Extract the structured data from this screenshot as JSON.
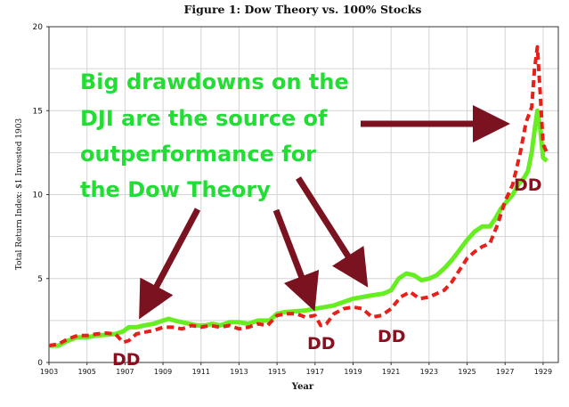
{
  "chart_data": {
    "type": "line",
    "title": "Figure 1: Dow Theory vs. 100% Stocks",
    "xlabel": "Year",
    "ylabel": "Total Return Index: $1 Invested 1903",
    "xlim": [
      1903,
      1929.8
    ],
    "ylim": [
      0,
      20
    ],
    "x_ticks": [
      "1903",
      "1905",
      "1907",
      "1909",
      "1911",
      "1913",
      "1915",
      "1917",
      "1919",
      "1921",
      "1923",
      "1925",
      "1927",
      "1929"
    ],
    "y_ticks": [
      "0",
      "5",
      "10",
      "15",
      "20"
    ],
    "grid": true,
    "series": [
      {
        "color": "#66ee22",
        "style": "solid",
        "x": [
          1903.0,
          1903.5,
          1904.0,
          1904.5,
          1905.0,
          1905.5,
          1906.0,
          1906.5,
          1906.9,
          1907.2,
          1907.6,
          1908.0,
          1908.5,
          1909.0,
          1909.3,
          1909.6,
          1910.0,
          1910.4,
          1910.8,
          1911.2,
          1911.6,
          1912.0,
          1912.5,
          1913.0,
          1913.5,
          1914.0,
          1914.6,
          1915.0,
          1915.4,
          1916.0,
          1916.5,
          1917.0,
          1917.5,
          1918.0,
          1918.5,
          1919.0,
          1919.5,
          1920.0,
          1920.6,
          1921.0,
          1921.4,
          1921.8,
          1922.2,
          1922.6,
          1923.0,
          1923.4,
          1923.8,
          1924.2,
          1924.6,
          1925.0,
          1925.4,
          1925.8,
          1926.2,
          1926.5,
          1926.8,
          1927.1,
          1927.4,
          1927.7,
          1928.0,
          1928.2,
          1928.4,
          1928.55,
          1928.7,
          1928.85,
          1929.0,
          1929.2
        ],
        "y": [
          1.0,
          1.0,
          1.3,
          1.5,
          1.5,
          1.6,
          1.65,
          1.7,
          1.85,
          2.1,
          2.1,
          2.2,
          2.3,
          2.5,
          2.6,
          2.5,
          2.4,
          2.3,
          2.2,
          2.2,
          2.3,
          2.2,
          2.4,
          2.4,
          2.3,
          2.5,
          2.5,
          2.9,
          3.0,
          3.05,
          3.1,
          3.2,
          3.3,
          3.4,
          3.6,
          3.8,
          3.9,
          4.0,
          4.1,
          4.3,
          5.0,
          5.3,
          5.2,
          4.9,
          5.0,
          5.2,
          5.6,
          6.1,
          6.7,
          7.3,
          7.8,
          8.1,
          8.1,
          8.6,
          9.2,
          9.6,
          10.0,
          10.6,
          11.0,
          11.4,
          12.5,
          13.8,
          15.0,
          13.9,
          12.2,
          12.0
        ]
      },
      {
        "color": "#e8201a",
        "style": "dashed",
        "x": [
          1903.0,
          1903.5,
          1904.0,
          1904.5,
          1905.0,
          1905.5,
          1906.0,
          1906.5,
          1906.9,
          1907.2,
          1907.6,
          1908.0,
          1908.5,
          1909.0,
          1909.5,
          1910.0,
          1910.5,
          1911.0,
          1911.5,
          1912.0,
          1912.5,
          1913.0,
          1913.5,
          1914.0,
          1914.5,
          1915.0,
          1915.5,
          1916.0,
          1916.5,
          1917.0,
          1917.3,
          1917.6,
          1918.0,
          1918.5,
          1919.0,
          1919.5,
          1920.0,
          1920.5,
          1921.0,
          1921.5,
          1922.0,
          1922.5,
          1923.0,
          1923.4,
          1923.8,
          1924.2,
          1924.6,
          1925.0,
          1925.4,
          1925.8,
          1926.2,
          1926.6,
          1927.0,
          1927.4,
          1927.8,
          1928.1,
          1928.4,
          1928.55,
          1928.7,
          1928.85,
          1929.0,
          1929.2
        ],
        "y": [
          1.0,
          1.1,
          1.4,
          1.6,
          1.6,
          1.7,
          1.75,
          1.7,
          1.2,
          1.3,
          1.7,
          1.8,
          1.9,
          2.1,
          2.1,
          2.0,
          2.2,
          2.1,
          2.2,
          2.1,
          2.2,
          2.0,
          2.1,
          2.3,
          2.2,
          2.8,
          2.9,
          2.9,
          2.7,
          2.8,
          2.2,
          2.3,
          2.9,
          3.2,
          3.3,
          3.2,
          2.7,
          2.8,
          3.2,
          3.9,
          4.2,
          3.8,
          3.9,
          4.1,
          4.3,
          4.8,
          5.5,
          6.2,
          6.6,
          6.9,
          7.1,
          8.2,
          9.6,
          10.6,
          12.5,
          14.3,
          15.2,
          17.5,
          18.8,
          16.0,
          13.0,
          12.5
        ]
      }
    ],
    "annotations": [
      {
        "text": "Big drawdowns on the"
      },
      {
        "text": "DJI are the source of"
      },
      {
        "text": "outperformance for"
      },
      {
        "text": "the Dow Theory"
      },
      {
        "text": "DD"
      },
      {
        "text": "DD"
      },
      {
        "text": "DD"
      },
      {
        "text": "DD"
      }
    ],
    "annotation_colors": {
      "callout": "#22dd33",
      "dd": "#8a1020",
      "arrow": "#7a1220"
    }
  }
}
